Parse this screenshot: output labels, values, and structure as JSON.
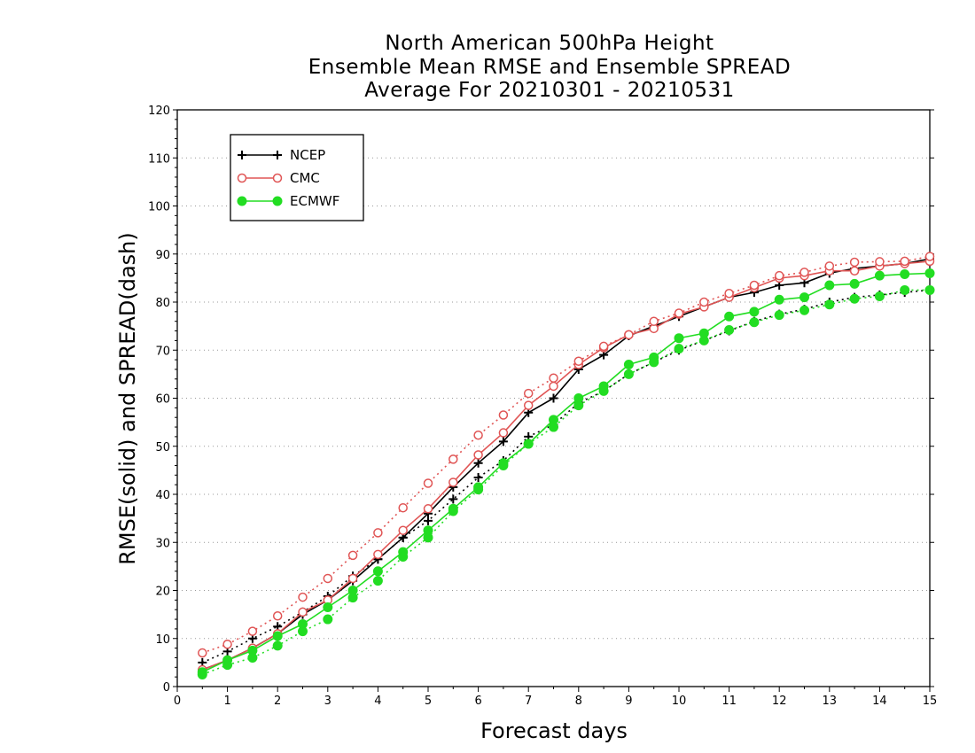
{
  "chart_data": {
    "type": "line",
    "title": [
      "North American 500hPa Height",
      "Ensemble Mean RMSE and Ensemble SPREAD",
      "Average For 20210301 - 20210531"
    ],
    "xlabel": "Forecast days",
    "ylabel": "RMSE(solid) and SPREAD(dash)",
    "xlim": [
      0,
      15
    ],
    "ylim": [
      0,
      120
    ],
    "xticks": [
      0,
      1,
      2,
      3,
      4,
      5,
      6,
      7,
      8,
      9,
      10,
      11,
      12,
      13,
      14,
      15
    ],
    "yticks": [
      0,
      10,
      20,
      30,
      40,
      50,
      60,
      70,
      80,
      90,
      100,
      110,
      120
    ],
    "grid": "horizontal dotted",
    "legend_position": "top-left",
    "x": [
      0.5,
      1,
      1.5,
      2,
      2.5,
      3,
      3.5,
      4,
      4.5,
      5,
      5.5,
      6,
      6.5,
      7,
      7.5,
      8,
      8.5,
      9,
      9.5,
      10,
      10.5,
      11,
      11.5,
      12,
      12.5,
      13,
      13.5,
      14,
      14.5,
      15
    ],
    "series": [
      {
        "name": "NCEP",
        "metric": "RMSE",
        "color": "#000000",
        "marker": "plus",
        "values": [
          3.5,
          5.5,
          8,
          11,
          15,
          18,
          22,
          26.5,
          31,
          36,
          41.5,
          46.5,
          51,
          57,
          60,
          66,
          69,
          73,
          75,
          77,
          79,
          81,
          82,
          83.5,
          84,
          86,
          87,
          87.5,
          88,
          89
        ]
      },
      {
        "name": "NCEP",
        "metric": "SPREAD",
        "color": "#000000",
        "marker": "plus",
        "values": [
          5,
          7.3,
          10,
          12.5,
          15.5,
          18.8,
          23,
          26.5,
          31,
          34.5,
          39,
          43.5,
          47,
          52,
          54.5,
          59,
          61.5,
          65,
          67.5,
          70,
          72,
          74,
          76,
          77.5,
          78.5,
          80,
          81,
          81.5,
          82,
          82.5
        ]
      },
      {
        "name": "CMC",
        "metric": "RMSE",
        "color": "#e05555",
        "marker": "open-circle",
        "values": [
          3.5,
          5.5,
          8,
          11,
          15.5,
          18,
          22.5,
          27.5,
          32.5,
          37,
          42.5,
          48.2,
          52.8,
          58.5,
          62.5,
          67,
          70.5,
          73.2,
          74.5,
          77.5,
          79,
          81,
          83,
          85,
          85.5,
          86.5,
          86.5,
          87.5,
          88,
          88.5
        ]
      },
      {
        "name": "CMC",
        "metric": "SPREAD",
        "color": "#e05555",
        "marker": "open-circle",
        "values": [
          7,
          8.8,
          11.5,
          14.7,
          18.6,
          22.5,
          27.3,
          32,
          37.2,
          42.3,
          47.3,
          52.3,
          56.5,
          61,
          64.2,
          67.7,
          70.8,
          73.2,
          76,
          77.7,
          80,
          81.8,
          83.5,
          85.5,
          86.2,
          87.5,
          88.3,
          88.4,
          88.5,
          89.5
        ]
      },
      {
        "name": "ECMWF",
        "metric": "RMSE",
        "color": "#22dd22",
        "marker": "filled-circle",
        "values": [
          3,
          5.5,
          7.5,
          10.5,
          13,
          16.5,
          20,
          24,
          28,
          32.5,
          37,
          41.5,
          46.5,
          50.5,
          55.5,
          60,
          62.5,
          67,
          68.5,
          72.5,
          73.5,
          77,
          78,
          80.5,
          81,
          83.5,
          83.8,
          85.5,
          85.8,
          86
        ]
      },
      {
        "name": "ECMWF",
        "metric": "SPREAD",
        "color": "#22dd22",
        "marker": "filled-circle",
        "values": [
          2.5,
          4.5,
          6,
          8.5,
          11.5,
          14,
          18.5,
          22,
          27,
          31,
          36.5,
          41,
          46,
          50.5,
          54,
          58.5,
          61.5,
          65,
          67.5,
          70.3,
          72,
          74.2,
          75.8,
          77.3,
          78.3,
          79.5,
          80.7,
          81.2,
          82.5,
          82.5
        ]
      }
    ],
    "legend": [
      {
        "label": "NCEP",
        "color": "#000000",
        "marker": "plus"
      },
      {
        "label": "CMC",
        "color": "#e05555",
        "marker": "open-circle"
      },
      {
        "label": "ECMWF",
        "color": "#22dd22",
        "marker": "filled-circle"
      }
    ]
  }
}
